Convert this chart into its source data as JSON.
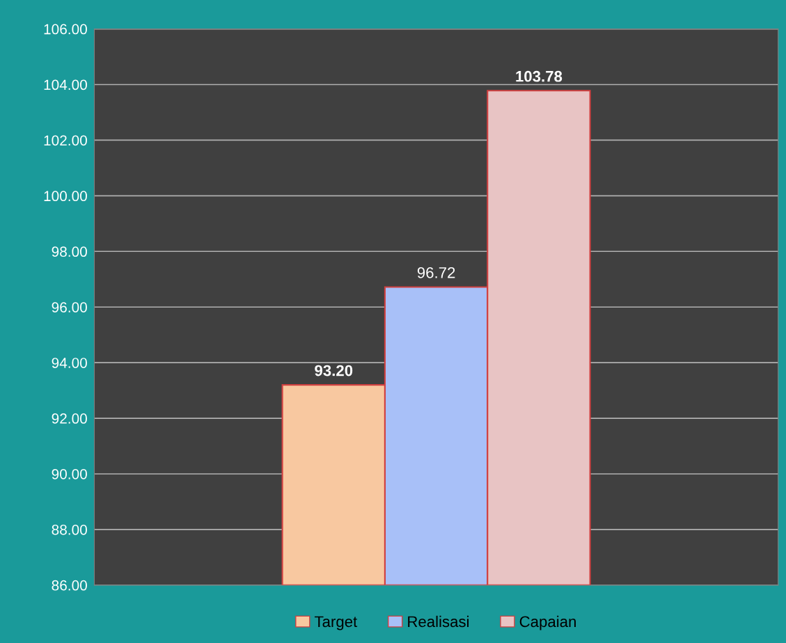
{
  "chart_data": {
    "type": "bar",
    "categories": [
      null
    ],
    "series": [
      {
        "name": "Target",
        "color": "#f8c8a0",
        "values": [
          93.2
        ],
        "value_labels": [
          "93.20"
        ]
      },
      {
        "name": "Realisasi",
        "color": "#a8c0f8",
        "values": [
          96.72
        ],
        "value_labels": [
          "96.72"
        ]
      },
      {
        "name": "Capaian",
        "color": "#e8c4c4",
        "values": [
          103.78
        ],
        "value_labels": [
          "103.78"
        ]
      }
    ],
    "ylim": [
      86,
      106
    ],
    "yticks": [
      {
        "value": 86,
        "label": "86.00"
      },
      {
        "value": 88,
        "label": "88.00"
      },
      {
        "value": 90,
        "label": "90.00"
      },
      {
        "value": 92,
        "label": "92.00"
      },
      {
        "value": 94,
        "label": "94.00"
      },
      {
        "value": 96,
        "label": "96.00"
      },
      {
        "value": 98,
        "label": "98.00"
      },
      {
        "value": 100,
        "label": "100.00"
      },
      {
        "value": 102,
        "label": "102.00"
      },
      {
        "value": 104,
        "label": "104.00"
      },
      {
        "value": 106,
        "label": "106.00"
      }
    ],
    "grid": "y",
    "legend": "bottom"
  }
}
